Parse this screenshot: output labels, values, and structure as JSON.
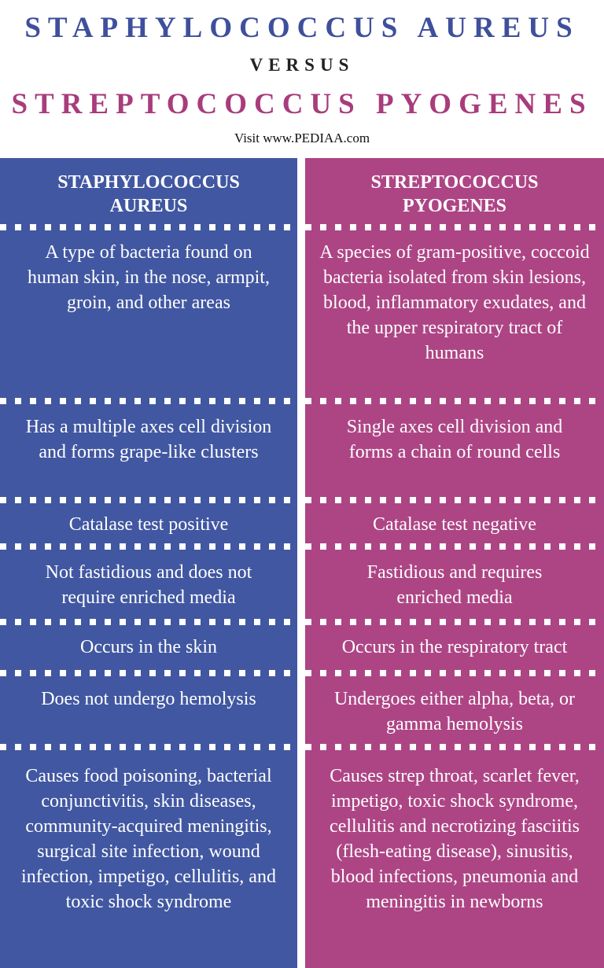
{
  "title": {
    "line1": "STAPHYLOCOCCUS AUREUS",
    "versus": "VERSUS",
    "line2": "STREPTOCOCCUS PYOGENES",
    "source": "Visit www.PEDIAA.com"
  },
  "colors": {
    "left": "#4157a1",
    "right": "#ad4585"
  },
  "left": {
    "header": "STAPHYLOCOCCUS AUREUS",
    "rows": [
      "A type of bacteria found on human skin, in the nose, armpit, groin, and other areas",
      "Has a multiple axes cell division and forms grape-like clusters",
      "Catalase test positive",
      "Not fastidious and does not require enriched media",
      "Occurs in the skin",
      "Does not undergo hemolysis",
      "Causes food poisoning, bacterial conjunctivitis, skin diseases, community-acquired meningitis, surgical site infection, wound infection, impetigo, cellulitis, and toxic shock syndrome"
    ]
  },
  "right": {
    "header": "STREPTOCOCCUS PYOGENES",
    "rows": [
      "A species of gram-positive, coccoid bacteria isolated from skin lesions, blood, inflammatory exudates, and the upper respiratory tract of humans",
      "Single axes cell division and forms a chain of round cells",
      "Catalase test negative",
      "Fastidious and requires enriched media",
      "Occurs in the respiratory tract",
      "Undergoes either alpha, beta, or gamma hemolysis",
      "Causes strep throat, scarlet fever, impetigo, toxic shock syndrome, cellulitis and necrotizing fasciitis (flesh-eating disease), sinusitis, blood infections, pneumonia and meningitis in newborns"
    ]
  }
}
